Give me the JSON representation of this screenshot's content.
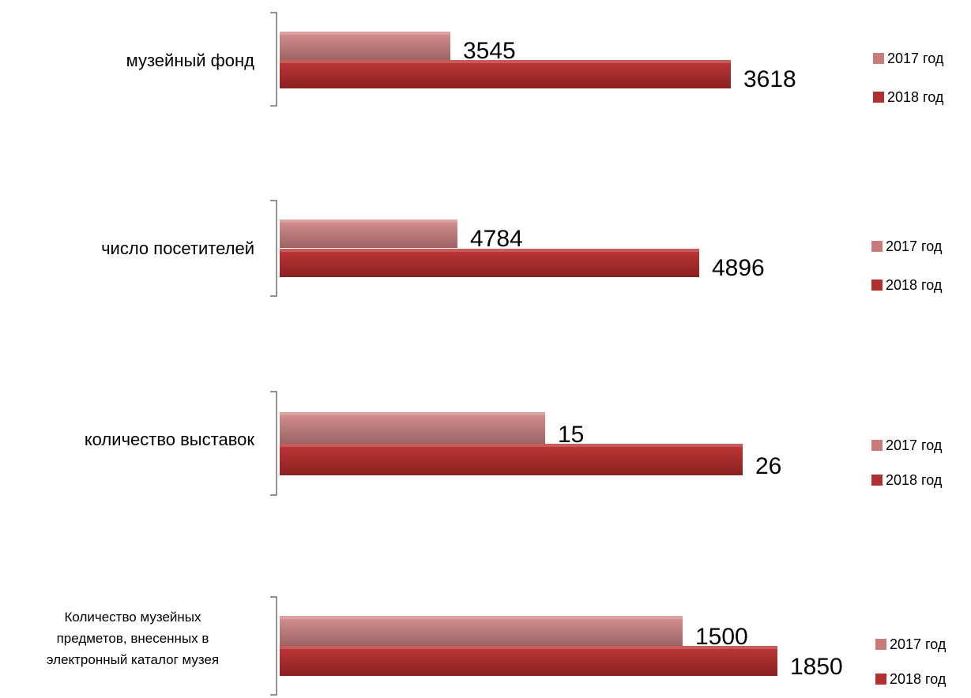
{
  "colors": {
    "series_2017": "#c97a7a",
    "series_2018": "#b03030",
    "axis": "#6f6f6f"
  },
  "chart_data": [
    {
      "type": "bar",
      "orientation": "horizontal",
      "categories": [
        "музейный фонд"
      ],
      "series": [
        {
          "name": "2017 год",
          "values": [
            3545
          ]
        },
        {
          "name": "2018 год",
          "values": [
            3618
          ]
        }
      ],
      "legend": "right",
      "grid": false
    },
    {
      "type": "bar",
      "orientation": "horizontal",
      "categories": [
        "число посетителей"
      ],
      "series": [
        {
          "name": "2017 год",
          "values": [
            4784
          ]
        },
        {
          "name": "2018 год",
          "values": [
            4896
          ]
        }
      ],
      "legend": "right",
      "grid": false
    },
    {
      "type": "bar",
      "orientation": "horizontal",
      "categories": [
        "количество выставок"
      ],
      "series": [
        {
          "name": "2017 год",
          "values": [
            15
          ]
        },
        {
          "name": "2018 год",
          "values": [
            26
          ]
        }
      ],
      "legend": "right",
      "grid": false
    },
    {
      "type": "bar",
      "orientation": "horizontal",
      "categories": [
        "Количество музейных предметов, внесенных в электронный каталог музея"
      ],
      "category_lines": [
        [
          "Количество музейных",
          "предметов, внесенных в",
          "электронный каталог музея"
        ]
      ],
      "series": [
        {
          "name": "2017 год",
          "values": [
            1500
          ]
        },
        {
          "name": "2018 год",
          "values": [
            1850
          ]
        }
      ],
      "legend": "right",
      "grid": false
    }
  ]
}
